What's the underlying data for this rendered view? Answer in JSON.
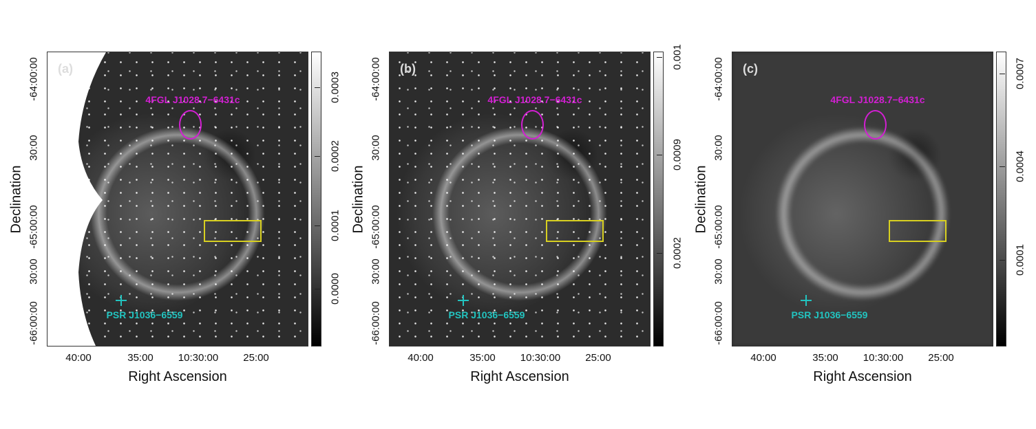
{
  "axes": {
    "xlabel": "Right Ascension",
    "ylabel": "Declination",
    "ra_ticks": [
      "40:00",
      "35:00",
      "10:30:00",
      "25:00"
    ],
    "dec_ticks": [
      "-64:00:00",
      "30:00",
      "-65:00:00",
      "30:00",
      "-66:00:00"
    ]
  },
  "annotations": {
    "gamma_source": "4FGL J1028.7−6431c",
    "pulsar": "PSR J1036−6559",
    "colors": {
      "gamma_source": "#d21fd2",
      "region_box": "#d8d020",
      "pulsar": "#22c4c0"
    }
  },
  "panels": [
    {
      "label": "(a)",
      "colorbar": [
        "0.0003",
        "0.0002",
        "0.0001",
        "0.0000"
      ]
    },
    {
      "label": "(b)",
      "colorbar": [
        "0.001",
        "0.0009",
        "0.0002"
      ]
    },
    {
      "label": "(c)",
      "colorbar": [
        "0.0007",
        "0.0004",
        "0.0001"
      ]
    }
  ]
}
